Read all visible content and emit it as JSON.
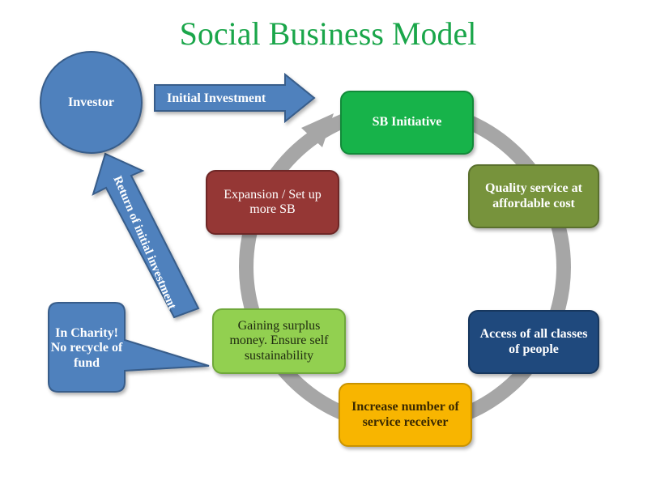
{
  "title": "Social Business Model",
  "nodes": {
    "investor": "Investor",
    "sb_initiative": "SB Initiative",
    "quality": "Quality service at affordable cost",
    "access": "Access of all classes of people",
    "increase": "Increase number of service receiver",
    "gaining": "Gaining surplus money. Ensure self sustainability",
    "expansion": "Expansion / Set up more SB",
    "charity": "In Charity! No recycle of fund"
  },
  "arrows": {
    "initial_investment": "Initial Investment",
    "return_investment": "Return of initial investment"
  },
  "colors": {
    "title": "#1aa64a",
    "investor": "#4f81bd",
    "sb_initiative": "#17b34a",
    "quality": "#77933c",
    "access": "#1f497d",
    "increase": "#f8b500",
    "gaining": "#92d050",
    "expansion": "#953735",
    "cycle_arrow": "#a6a6a6"
  }
}
